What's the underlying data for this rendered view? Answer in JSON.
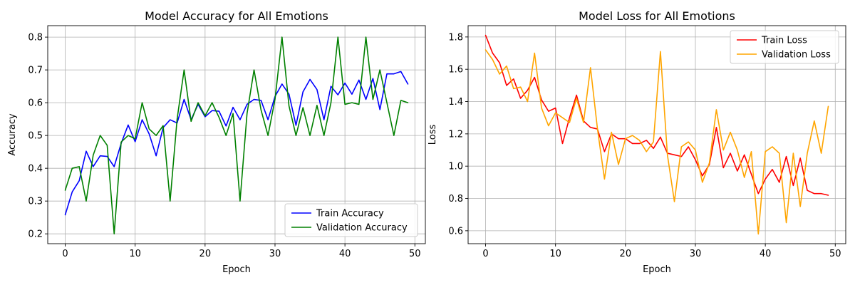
{
  "chart_data": [
    {
      "type": "line",
      "title": "Model Accuracy for All Emotions",
      "xlabel": "Epoch",
      "ylabel": "Accuracy",
      "xlim": [
        -2.5,
        51.5
      ],
      "ylim": [
        0.17,
        0.835
      ],
      "xticks": [
        0,
        10,
        20,
        30,
        40,
        50
      ],
      "yticks": [
        0.2,
        0.3,
        0.4,
        0.5,
        0.6,
        0.7,
        0.8
      ],
      "ytick_labels": [
        "0.2",
        "0.3",
        "0.4",
        "0.5",
        "0.6",
        "0.7",
        "0.8"
      ],
      "grid": true,
      "legend_position": "lower-right",
      "x": [
        0,
        1,
        2,
        3,
        4,
        5,
        6,
        7,
        8,
        9,
        10,
        11,
        12,
        13,
        14,
        15,
        16,
        17,
        18,
        19,
        20,
        21,
        22,
        23,
        24,
        25,
        26,
        27,
        28,
        29,
        30,
        31,
        32,
        33,
        34,
        35,
        36,
        37,
        38,
        39,
        40,
        41,
        42,
        43,
        44,
        45,
        46,
        47,
        48,
        49
      ],
      "series": [
        {
          "name": "Train Accuracy",
          "color": "#0000ff",
          "values": [
            0.258,
            0.328,
            0.362,
            0.452,
            0.405,
            0.438,
            0.436,
            0.405,
            0.476,
            0.532,
            0.481,
            0.548,
            0.505,
            0.438,
            0.524,
            0.548,
            0.538,
            0.61,
            0.548,
            0.595,
            0.557,
            0.576,
            0.574,
            0.529,
            0.586,
            0.548,
            0.595,
            0.61,
            0.607,
            0.548,
            0.619,
            0.657,
            0.626,
            0.531,
            0.633,
            0.671,
            0.64,
            0.548,
            0.65,
            0.624,
            0.66,
            0.626,
            0.669,
            0.61,
            0.674,
            0.579,
            0.688,
            0.688,
            0.695,
            0.657
          ]
        },
        {
          "name": "Validation Accuracy",
          "color": "#008000",
          "values": [
            0.333,
            0.4,
            0.405,
            0.3,
            0.44,
            0.5,
            0.47,
            0.2,
            0.48,
            0.5,
            0.49,
            0.6,
            0.52,
            0.5,
            0.53,
            0.3,
            0.55,
            0.7,
            0.543,
            0.6,
            0.56,
            0.6,
            0.555,
            0.5,
            0.567,
            0.3,
            0.567,
            0.7,
            0.578,
            0.5,
            0.61,
            0.8,
            0.59,
            0.5,
            0.585,
            0.5,
            0.592,
            0.5,
            0.6,
            0.8,
            0.595,
            0.6,
            0.595,
            0.8,
            0.61,
            0.7,
            0.6,
            0.5,
            0.607,
            0.6
          ]
        }
      ]
    },
    {
      "type": "line",
      "title": "Model Loss for All Emotions",
      "xlabel": "Epoch",
      "ylabel": "Loss",
      "xlim": [
        -2.5,
        51.5
      ],
      "ylim": [
        0.52,
        1.87
      ],
      "xticks": [
        0,
        10,
        20,
        30,
        40,
        50
      ],
      "yticks": [
        0.6,
        0.8,
        1.0,
        1.2,
        1.4,
        1.6,
        1.8
      ],
      "ytick_labels": [
        "0.6",
        "0.8",
        "1.0",
        "1.2",
        "1.4",
        "1.6",
        "1.8"
      ],
      "grid": true,
      "legend_position": "upper-right",
      "x": [
        0,
        1,
        2,
        3,
        4,
        5,
        6,
        7,
        8,
        9,
        10,
        11,
        12,
        13,
        14,
        15,
        16,
        17,
        18,
        19,
        20,
        21,
        22,
        23,
        24,
        25,
        26,
        27,
        28,
        29,
        30,
        31,
        32,
        33,
        34,
        35,
        36,
        37,
        38,
        39,
        40,
        41,
        42,
        43,
        44,
        45,
        46,
        47,
        48,
        49
      ],
      "series": [
        {
          "name": "Train Loss",
          "color": "#ff0000",
          "values": [
            1.81,
            1.7,
            1.64,
            1.5,
            1.54,
            1.42,
            1.47,
            1.55,
            1.41,
            1.34,
            1.36,
            1.14,
            1.3,
            1.44,
            1.28,
            1.24,
            1.23,
            1.09,
            1.2,
            1.17,
            1.17,
            1.14,
            1.14,
            1.16,
            1.11,
            1.18,
            1.08,
            1.07,
            1.06,
            1.12,
            1.04,
            0.94,
            1.01,
            1.24,
            0.99,
            1.08,
            0.97,
            1.07,
            0.95,
            0.83,
            0.92,
            0.98,
            0.9,
            1.06,
            0.88,
            1.05,
            0.85,
            0.83,
            0.83,
            0.82
          ]
        },
        {
          "name": "Validation Loss",
          "color": "#ffa500",
          "values": [
            1.72,
            1.66,
            1.57,
            1.62,
            1.48,
            1.49,
            1.4,
            1.7,
            1.36,
            1.25,
            1.33,
            1.3,
            1.27,
            1.42,
            1.27,
            1.61,
            1.23,
            0.92,
            1.21,
            1.01,
            1.17,
            1.19,
            1.16,
            1.09,
            1.15,
            1.71,
            1.07,
            0.78,
            1.12,
            1.15,
            1.1,
            0.9,
            1.02,
            1.35,
            1.1,
            1.21,
            1.1,
            0.93,
            1.09,
            0.58,
            1.09,
            1.12,
            1.08,
            0.65,
            1.08,
            0.75,
            1.08,
            1.28,
            1.08,
            1.37
          ]
        }
      ]
    }
  ]
}
